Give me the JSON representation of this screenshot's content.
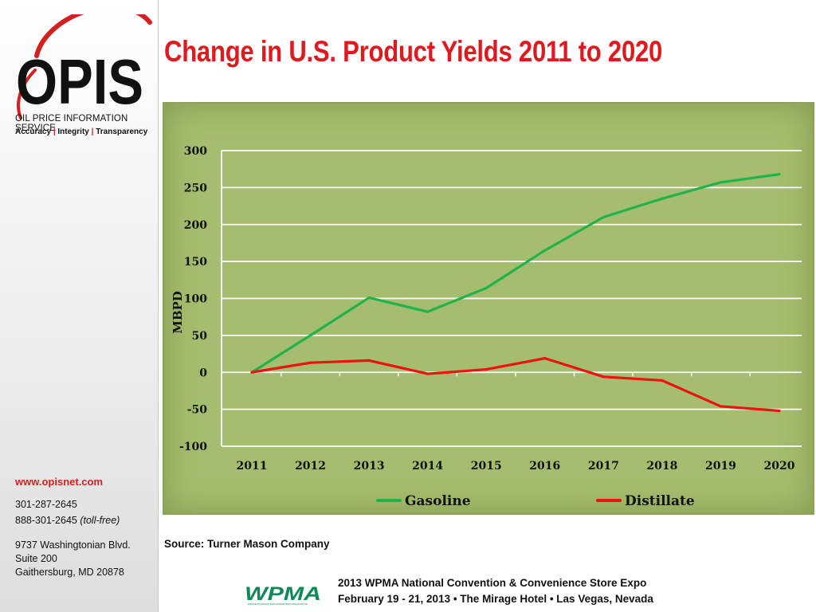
{
  "sidebar": {
    "logo_text": "OPIS",
    "company_name": "OIL PRICE INFORMATION SERVICE",
    "tagline_1": "Accuracy",
    "tagline_sep": "|",
    "tagline_2": "Integrity",
    "tagline_3": "Transparency",
    "website": "www.opisnet.com",
    "phone": "301-287-2645",
    "tollfree_number": "888-301-2645",
    "tollfree_note": "(toll-free)",
    "address_line1": "9737 Washingtonian Blvd.",
    "address_line2": "Suite 200",
    "address_line3": "Gaithersburg, MD 20878",
    "brand_color": "#d62020"
  },
  "slide": {
    "title": "Change in U.S. Product Yields 2011 to 2020",
    "source": "Source: Turner Mason Company"
  },
  "footer": {
    "logo_text": "WPMA",
    "logo_subtext": "WESTERN PETROLEUM MARKETERS ASSOCIATION",
    "line1": "2013 WPMA National Convention & Convenience Store Expo",
    "line2": "February 19 - 21, 2013 • The Mirage Hotel • Las Vegas, Nevada"
  },
  "chart_data": {
    "type": "line",
    "title": "",
    "xlabel": "",
    "ylabel": "MBPD",
    "x": [
      "2011",
      "2012",
      "2013",
      "2014",
      "2015",
      "2016",
      "2017",
      "2018",
      "2019",
      "2020"
    ],
    "ylim": [
      -100,
      300
    ],
    "yticks": [
      300,
      250,
      200,
      150,
      100,
      50,
      0,
      -50,
      -100
    ],
    "grid": true,
    "legend_position": "bottom",
    "background_color": "#a5bd6e",
    "series": [
      {
        "name": "Gasoline",
        "color": "#22b24c",
        "values": [
          0,
          50,
          101,
          82,
          114,
          165,
          210,
          235,
          257,
          268
        ]
      },
      {
        "name": "Distillate",
        "color": "#ee1111",
        "values": [
          0,
          13,
          16,
          -2,
          4,
          19,
          -6,
          -11,
          -46,
          -52
        ]
      }
    ]
  }
}
